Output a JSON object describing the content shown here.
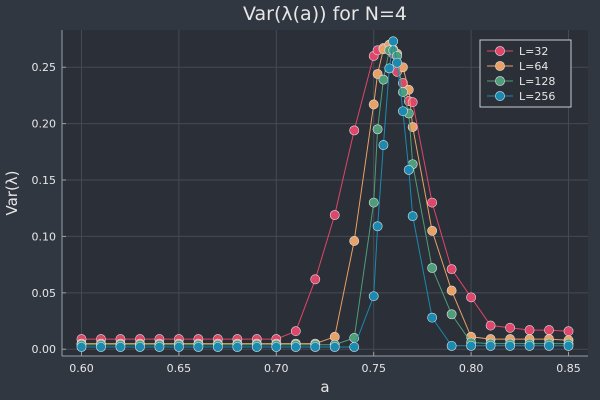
{
  "chart_data": {
    "type": "line",
    "title": "Var(λ(a)) for N=4",
    "xlabel": "a",
    "ylabel": "Var(λ)",
    "xlim": [
      0.59,
      0.86
    ],
    "ylim": [
      -0.006,
      0.283
    ],
    "xticks": [
      0.6,
      0.65,
      0.7,
      0.75,
      0.8,
      0.85
    ],
    "xtick_labels": [
      "0.60",
      "0.65",
      "0.70",
      "0.75",
      "0.80",
      "0.85"
    ],
    "yticks": [
      0.0,
      0.05,
      0.1,
      0.15,
      0.2,
      0.25
    ],
    "ytick_labels": [
      "0.00",
      "0.05",
      "0.10",
      "0.15",
      "0.20",
      "0.25"
    ],
    "grid": true,
    "legend_position": "top-right",
    "series": [
      {
        "name": "L=32",
        "color": "#e0456a",
        "points": [
          [
            0.6,
            0.009
          ],
          [
            0.61,
            0.009
          ],
          [
            0.62,
            0.009
          ],
          [
            0.63,
            0.009
          ],
          [
            0.64,
            0.009
          ],
          [
            0.65,
            0.009
          ],
          [
            0.66,
            0.009
          ],
          [
            0.67,
            0.009
          ],
          [
            0.68,
            0.009
          ],
          [
            0.69,
            0.009
          ],
          [
            0.7,
            0.009
          ],
          [
            0.71,
            0.016
          ],
          [
            0.72,
            0.062
          ],
          [
            0.73,
            0.119
          ],
          [
            0.74,
            0.194
          ],
          [
            0.75,
            0.26
          ],
          [
            0.752,
            0.265
          ],
          [
            0.755,
            0.267
          ],
          [
            0.758,
            0.266
          ],
          [
            0.76,
            0.262
          ],
          [
            0.762,
            0.246
          ],
          [
            0.765,
            0.236
          ],
          [
            0.768,
            0.22
          ],
          [
            0.77,
            0.219
          ],
          [
            0.78,
            0.13
          ],
          [
            0.79,
            0.071
          ],
          [
            0.8,
            0.046
          ],
          [
            0.81,
            0.021
          ],
          [
            0.82,
            0.019
          ],
          [
            0.83,
            0.017
          ],
          [
            0.84,
            0.017
          ],
          [
            0.85,
            0.016
          ]
        ]
      },
      {
        "name": "L=64",
        "color": "#e9a165",
        "points": [
          [
            0.6,
            0.005
          ],
          [
            0.61,
            0.005
          ],
          [
            0.62,
            0.005
          ],
          [
            0.63,
            0.005
          ],
          [
            0.64,
            0.005
          ],
          [
            0.65,
            0.005
          ],
          [
            0.66,
            0.005
          ],
          [
            0.67,
            0.005
          ],
          [
            0.68,
            0.005
          ],
          [
            0.69,
            0.005
          ],
          [
            0.7,
            0.005
          ],
          [
            0.71,
            0.005
          ],
          [
            0.72,
            0.005
          ],
          [
            0.73,
            0.011
          ],
          [
            0.74,
            0.096
          ],
          [
            0.75,
            0.217
          ],
          [
            0.752,
            0.244
          ],
          [
            0.755,
            0.266
          ],
          [
            0.758,
            0.27
          ],
          [
            0.76,
            0.266
          ],
          [
            0.762,
            0.262
          ],
          [
            0.765,
            0.25
          ],
          [
            0.768,
            0.23
          ],
          [
            0.77,
            0.197
          ],
          [
            0.78,
            0.105
          ],
          [
            0.79,
            0.052
          ],
          [
            0.8,
            0.011
          ],
          [
            0.81,
            0.009
          ],
          [
            0.82,
            0.009
          ],
          [
            0.83,
            0.009
          ],
          [
            0.84,
            0.009
          ],
          [
            0.85,
            0.008
          ]
        ]
      },
      {
        "name": "L=128",
        "color": "#4e9e79",
        "points": [
          [
            0.6,
            0.004
          ],
          [
            0.61,
            0.004
          ],
          [
            0.62,
            0.004
          ],
          [
            0.63,
            0.004
          ],
          [
            0.64,
            0.004
          ],
          [
            0.65,
            0.004
          ],
          [
            0.66,
            0.004
          ],
          [
            0.67,
            0.004
          ],
          [
            0.68,
            0.004
          ],
          [
            0.69,
            0.004
          ],
          [
            0.7,
            0.004
          ],
          [
            0.71,
            0.004
          ],
          [
            0.72,
            0.004
          ],
          [
            0.73,
            0.004
          ],
          [
            0.74,
            0.01
          ],
          [
            0.75,
            0.13
          ],
          [
            0.752,
            0.195
          ],
          [
            0.755,
            0.239
          ],
          [
            0.758,
            0.265
          ],
          [
            0.76,
            0.265
          ],
          [
            0.762,
            0.26
          ],
          [
            0.765,
            0.228
          ],
          [
            0.768,
            0.209
          ],
          [
            0.77,
            0.164
          ],
          [
            0.78,
            0.072
          ],
          [
            0.79,
            0.031
          ],
          [
            0.8,
            0.006
          ],
          [
            0.81,
            0.005
          ],
          [
            0.82,
            0.005
          ],
          [
            0.83,
            0.005
          ],
          [
            0.84,
            0.005
          ],
          [
            0.85,
            0.005
          ]
        ]
      },
      {
        "name": "L=256",
        "color": "#1a8ab0",
        "points": [
          [
            0.6,
            0.002
          ],
          [
            0.61,
            0.002
          ],
          [
            0.62,
            0.002
          ],
          [
            0.63,
            0.002
          ],
          [
            0.64,
            0.002
          ],
          [
            0.65,
            0.002
          ],
          [
            0.66,
            0.002
          ],
          [
            0.67,
            0.002
          ],
          [
            0.68,
            0.002
          ],
          [
            0.69,
            0.002
          ],
          [
            0.7,
            0.002
          ],
          [
            0.71,
            0.002
          ],
          [
            0.72,
            0.002
          ],
          [
            0.73,
            0.002
          ],
          [
            0.74,
            0.002
          ],
          [
            0.75,
            0.047
          ],
          [
            0.752,
            0.109
          ],
          [
            0.755,
            0.181
          ],
          [
            0.758,
            0.249
          ],
          [
            0.76,
            0.273
          ],
          [
            0.762,
            0.254
          ],
          [
            0.765,
            0.211
          ],
          [
            0.768,
            0.159
          ],
          [
            0.77,
            0.118
          ],
          [
            0.78,
            0.028
          ],
          [
            0.79,
            0.003
          ],
          [
            0.8,
            0.003
          ],
          [
            0.81,
            0.003
          ],
          [
            0.82,
            0.003
          ],
          [
            0.83,
            0.003
          ],
          [
            0.84,
            0.003
          ],
          [
            0.85,
            0.003
          ]
        ]
      }
    ]
  },
  "colors": {
    "background": "#313741",
    "plot_background": "#2b2f37",
    "text": "#e6e6e6",
    "grid": "#454b55",
    "axis": "#9a9ea6"
  }
}
